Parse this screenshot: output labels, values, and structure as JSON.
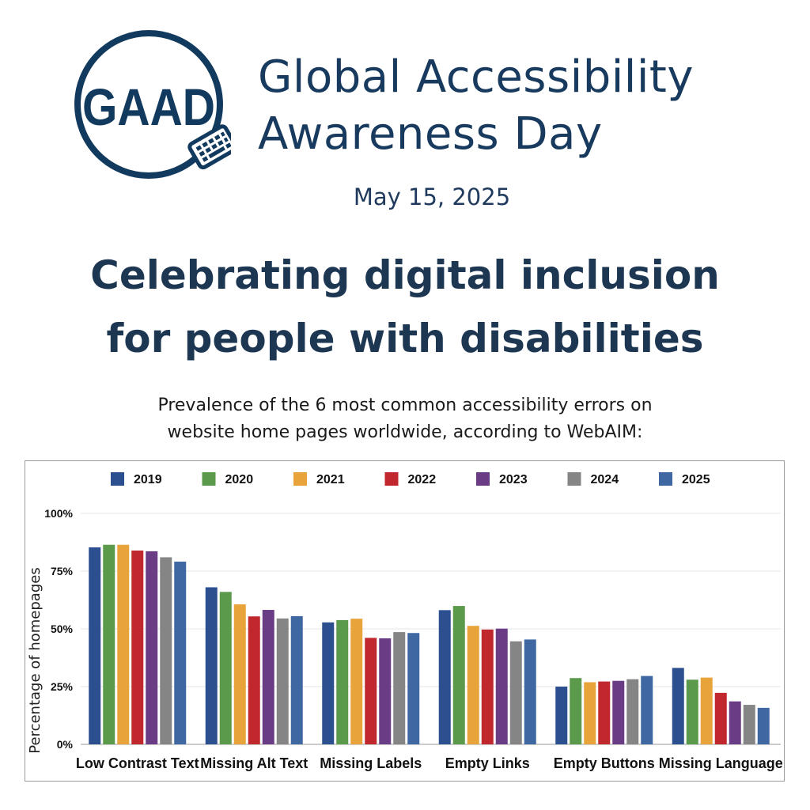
{
  "logo": {
    "text": "GAAD",
    "color": "#123a5e"
  },
  "header": {
    "title_line1": "Global Accessibility",
    "title_line2": "Awareness Day",
    "date": "May 15, 2025"
  },
  "headline": {
    "line1": "Celebrating digital inclusion",
    "line2": "for people with disabilities"
  },
  "subtitle": {
    "line1": "Prevalence of the 6 most common accessibility errors on",
    "line2": "website home pages worldwide, according to WebAIM:"
  },
  "chart_data": {
    "type": "bar",
    "ylabel": "Percentage of homepages",
    "xlabel": "",
    "ylim": [
      0,
      100
    ],
    "yticks": [
      "0%",
      "25%",
      "50%",
      "75%",
      "100%"
    ],
    "grid": true,
    "legend_position": "top",
    "categories": [
      "Low Contrast Text",
      "Missing Alt Text",
      "Missing Labels",
      "Empty Links",
      "Empty Buttons",
      "Missing Language"
    ],
    "series": [
      {
        "name": "2019",
        "color": "#2c4f8f",
        "values": [
          85.3,
          68.0,
          52.8,
          58.1,
          25.0,
          33.1
        ]
      },
      {
        "name": "2020",
        "color": "#5a9a4a",
        "values": [
          86.4,
          66.0,
          53.8,
          59.9,
          28.7,
          28.0
        ]
      },
      {
        "name": "2021",
        "color": "#e8a33a",
        "values": [
          86.4,
          60.6,
          54.4,
          51.3,
          26.9,
          28.9
        ]
      },
      {
        "name": "2022",
        "color": "#c0282d",
        "values": [
          83.9,
          55.4,
          46.1,
          49.7,
          27.2,
          22.3
        ]
      },
      {
        "name": "2023",
        "color": "#6b3c86",
        "values": [
          83.6,
          58.2,
          45.9,
          50.1,
          27.5,
          18.6
        ]
      },
      {
        "name": "2024",
        "color": "#858585",
        "values": [
          81.0,
          54.5,
          48.6,
          44.6,
          28.2,
          17.1
        ]
      },
      {
        "name": "2025",
        "color": "#3f68a3",
        "values": [
          79.1,
          55.5,
          48.2,
          45.4,
          29.6,
          15.8
        ]
      }
    ]
  }
}
